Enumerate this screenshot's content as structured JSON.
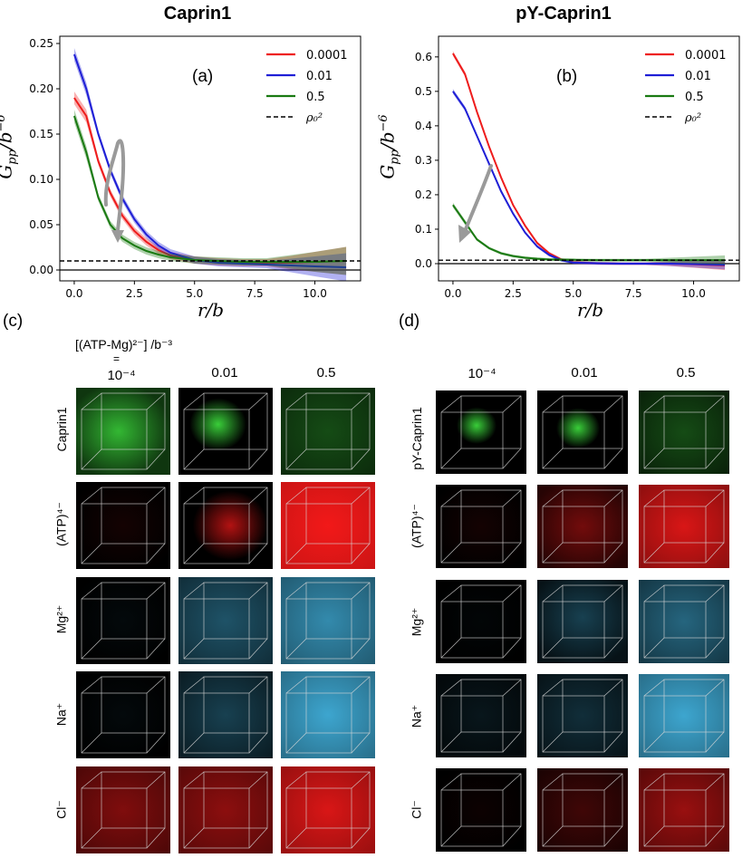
{
  "figure": {
    "title_left": "Caprin1",
    "title_right": "pY-Caprin1",
    "panel_a": "(a)",
    "panel_b": "(b)",
    "panel_c": "(c)",
    "panel_d": "(d)",
    "conc_axis_label": "[(ATP-Mg)²⁻] /b⁻³",
    "conc_eq": "=",
    "col_labels": [
      "10⁻⁴",
      "0.01",
      "0.5"
    ],
    "rows_c": [
      "Caprin1",
      "(ATP)⁴⁻",
      "Mg²⁺",
      "Na⁺",
      "Cl⁻"
    ],
    "rows_d": [
      "pY-Caprin1",
      "(ATP)⁴⁻",
      "Mg²⁺",
      "Na⁺",
      "Cl⁻"
    ],
    "ylabel": "Gpp/b⁻⁶",
    "xlabel": "r/b",
    "legend_ref": "ρ₀²",
    "colors": {
      "red": "#ee1c1c",
      "blue": "#1f1fd6",
      "green": "#1a7a12",
      "arrow": "#9a9a9a"
    }
  },
  "chart_data": [
    {
      "type": "line",
      "title": "Caprin1",
      "xlabel": "r/b",
      "ylabel": "Gpp/b^-6",
      "xlim": [
        -0.6,
        11.9
      ],
      "ylim": [
        -0.012,
        0.258
      ],
      "xticks": [
        "0.0",
        "2.5",
        "5.0",
        "7.5",
        "10.0"
      ],
      "xtick_values": [
        0,
        2.5,
        5,
        7.5,
        10
      ],
      "yticks": [
        "0.00",
        "0.05",
        "0.10",
        "0.15",
        "0.20",
        "0.25"
      ],
      "ytick_values": [
        0,
        0.05,
        0.1,
        0.15,
        0.2,
        0.25
      ],
      "reference_line": {
        "name": "ρ0²",
        "y": 0.01
      },
      "legend": "top-right",
      "series": [
        {
          "name": "0.0001",
          "color": "#ee1c1c",
          "x": [
            0,
            0.5,
            1,
            1.5,
            2,
            2.5,
            3,
            3.5,
            4,
            5,
            6,
            7,
            8,
            9,
            10,
            11.3
          ],
          "y": [
            0.19,
            0.17,
            0.12,
            0.085,
            0.06,
            0.043,
            0.031,
            0.022,
            0.016,
            0.011,
            0.009,
            0.008,
            0.008,
            0.008,
            0.009,
            0.01
          ]
        },
        {
          "name": "0.01",
          "color": "#1f1fd6",
          "x": [
            0,
            0.5,
            1,
            1.5,
            2,
            2.5,
            3,
            3.5,
            4,
            5,
            6,
            7,
            8,
            9,
            10,
            11.3
          ],
          "y": [
            0.238,
            0.2,
            0.15,
            0.11,
            0.079,
            0.056,
            0.039,
            0.027,
            0.019,
            0.011,
            0.008,
            0.007,
            0.006,
            0.005,
            0.004,
            0.003
          ]
        },
        {
          "name": "0.5",
          "color": "#1a7a12",
          "x": [
            0,
            0.5,
            1,
            1.5,
            2,
            2.5,
            3,
            3.5,
            4,
            5,
            6,
            7,
            8,
            9,
            10,
            11.3
          ],
          "y": [
            0.17,
            0.13,
            0.08,
            0.05,
            0.035,
            0.027,
            0.021,
            0.017,
            0.014,
            0.011,
            0.01,
            0.009,
            0.009,
            0.009,
            0.009,
            0.01
          ]
        }
      ],
      "annotations": [
        "(a)"
      ]
    },
    {
      "type": "line",
      "title": "pY-Caprin1",
      "xlabel": "r/b",
      "ylabel": "Gpp/b^-6",
      "xlim": [
        -0.6,
        11.9
      ],
      "ylim": [
        -0.05,
        0.66
      ],
      "xticks": [
        "0.0",
        "2.5",
        "5.0",
        "7.5",
        "10.0"
      ],
      "xtick_values": [
        0,
        2.5,
        5,
        7.5,
        10
      ],
      "yticks": [
        "0.0",
        "0.1",
        "0.2",
        "0.3",
        "0.4",
        "0.5",
        "0.6"
      ],
      "ytick_values": [
        0,
        0.1,
        0.2,
        0.3,
        0.4,
        0.5,
        0.6
      ],
      "reference_line": {
        "name": "ρ0²",
        "y": 0.01
      },
      "legend": "top-right",
      "series": [
        {
          "name": "0.0001",
          "color": "#ee1c1c",
          "x": [
            0,
            0.5,
            1,
            1.5,
            2,
            2.5,
            3,
            3.5,
            4,
            4.5,
            5,
            6,
            7,
            8,
            9,
            10,
            11.3
          ],
          "y": [
            0.61,
            0.55,
            0.44,
            0.34,
            0.25,
            0.17,
            0.11,
            0.06,
            0.03,
            0.012,
            0.004,
            0.001,
            0,
            0,
            0,
            -0.002,
            -0.005
          ]
        },
        {
          "name": "0.01",
          "color": "#1f1fd6",
          "x": [
            0,
            0.5,
            1,
            1.5,
            2,
            2.5,
            3,
            3.5,
            4,
            4.5,
            5,
            6,
            7,
            8,
            9,
            10,
            11.3
          ],
          "y": [
            0.5,
            0.45,
            0.37,
            0.29,
            0.21,
            0.145,
            0.09,
            0.05,
            0.025,
            0.01,
            0.003,
            0.001,
            0,
            0,
            0,
            -0.001,
            -0.003
          ]
        },
        {
          "name": "0.5",
          "color": "#1a7a12",
          "x": [
            0,
            0.5,
            1,
            1.5,
            2,
            2.5,
            3,
            3.5,
            4,
            5,
            6,
            7,
            8,
            9,
            10,
            11.3
          ],
          "y": [
            0.17,
            0.12,
            0.07,
            0.045,
            0.03,
            0.022,
            0.017,
            0.014,
            0.012,
            0.011,
            0.01,
            0.01,
            0.01,
            0.01,
            0.01,
            0.01
          ]
        }
      ],
      "annotations": [
        "(b)"
      ]
    }
  ]
}
